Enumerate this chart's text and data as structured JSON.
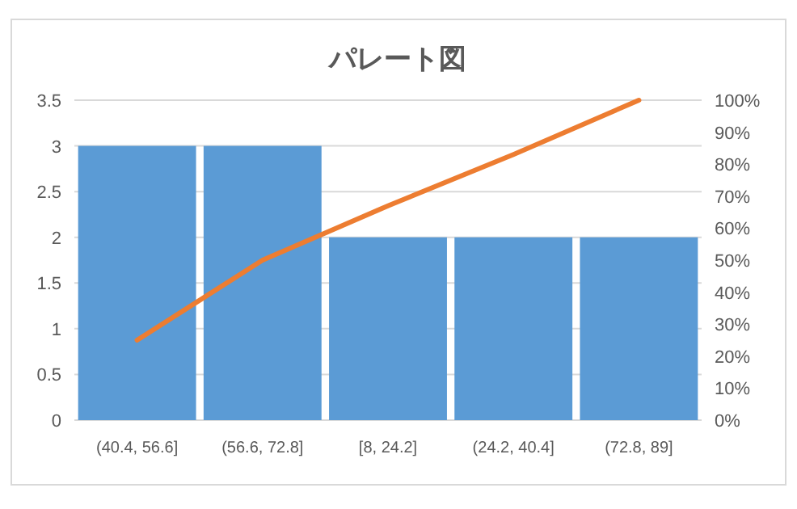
{
  "chart_data": {
    "type": "bar",
    "title": "パレート図",
    "categories": [
      "(40.4, 56.6]",
      "(56.6, 72.8]",
      "[8, 24.2]",
      "(24.2, 40.4]",
      "(72.8, 89]"
    ],
    "series": [
      {
        "color": "#5b9bd5",
        "values": [
          3,
          3,
          2,
          2,
          2
        ]
      },
      {
        "type": "line",
        "axis": "y2",
        "color": "#ed7d31",
        "values": [
          25,
          50,
          67,
          83,
          100
        ]
      }
    ],
    "ylim": [
      0,
      3.5
    ],
    "yticks": [
      0,
      0.5,
      1,
      1.5,
      2,
      2.5,
      3,
      3.5
    ],
    "y2lim": [
      0,
      100
    ],
    "y2ticks": [
      {
        "value": 0,
        "label": "0%"
      },
      {
        "value": 10,
        "label": "10%"
      },
      {
        "value": 20,
        "label": "20%"
      },
      {
        "value": 30,
        "label": "30%"
      },
      {
        "value": 40,
        "label": "40%"
      },
      {
        "value": 50,
        "label": "50%"
      },
      {
        "value": 60,
        "label": "60%"
      },
      {
        "value": 70,
        "label": "70%"
      },
      {
        "value": 80,
        "label": "80%"
      },
      {
        "value": 90,
        "label": "90%"
      },
      {
        "value": 100,
        "label": "100%"
      }
    ],
    "grid": "y",
    "marker": "none",
    "line_style": "solid"
  }
}
